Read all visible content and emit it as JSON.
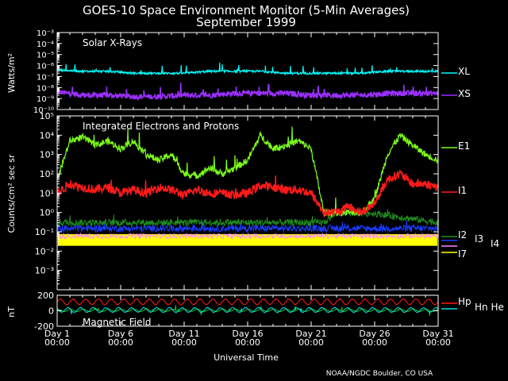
{
  "title": "GOES-10 Space Environment Monitor (5-Min Averages)",
  "subtitle": "September 1999",
  "xlabel": "Universal Time",
  "credit": "NOAA/NGDC Boulder, CO USA",
  "colors": {
    "background": "#000000",
    "axes": "#ffffff",
    "XL": "#00ffff",
    "XS": "#9a30ff",
    "E1": "#7cff1a",
    "I1": "#ff1a1a",
    "I2": "#1e8f1e",
    "I3": "#1a3cff",
    "I4": "#ff88ff",
    "I7": "#ffff00",
    "Hp": "#ff1a1a",
    "Hn": "#00e0e0",
    "He": "#1fbf1f"
  },
  "chart_data": [
    {
      "type": "line",
      "panel": "solar-xrays",
      "annotation": "Solar X-Rays",
      "ylabel": "Watts/m²",
      "yscale": "log",
      "ylim": [
        1e-10,
        0.001
      ],
      "yticks": [
        "10⁻³",
        "10⁻⁴",
        "10⁻⁵",
        "10⁻⁶",
        "10⁻⁷",
        "10⁻⁸",
        "10⁻⁹",
        "10⁻¹⁰"
      ],
      "x_unit": "day of September 1999",
      "xlim": [
        1,
        31
      ],
      "series": [
        {
          "name": "XL",
          "baseline": 2e-07,
          "x": [
            1,
            3,
            5,
            7,
            9,
            11,
            13,
            15,
            17,
            19,
            21,
            23,
            25,
            27,
            29,
            31
          ],
          "values": [
            4e-07,
            3e-07,
            3e-07,
            2e-07,
            2e-07,
            2e-07,
            3e-07,
            3e-07,
            3e-07,
            2e-07,
            2e-07,
            2e-07,
            2e-07,
            3e-07,
            3e-07,
            3e-07
          ]
        },
        {
          "name": "XS",
          "baseline": 1.5e-09,
          "x": [
            1,
            3,
            5,
            7,
            9,
            11,
            13,
            15,
            17,
            19,
            21,
            23,
            25,
            27,
            29,
            31
          ],
          "values": [
            4e-09,
            2e-09,
            2e-09,
            1.5e-09,
            1.5e-09,
            2e-09,
            2e-09,
            3e-09,
            3e-09,
            3e-09,
            2e-09,
            2e-09,
            2e-09,
            3e-09,
            3e-09,
            3e-09
          ]
        }
      ]
    },
    {
      "type": "line",
      "panel": "particles",
      "annotation": "Integrated Electrons and Protons",
      "ylabel": "Counts/cm² sec sr",
      "yscale": "log",
      "ylim": [
        0.0001,
        100000
      ],
      "yticks": [
        "10⁵",
        "10⁴",
        "10³",
        "10²",
        "10¹",
        "10⁰",
        "10⁻¹",
        "10⁻²",
        "10⁻³"
      ],
      "x_unit": "day of September 1999",
      "xlim": [
        1,
        31
      ],
      "series": [
        {
          "name": "E1",
          "x": [
            1,
            2,
            3,
            4,
            5,
            6,
            7,
            8,
            9,
            10,
            11,
            12,
            13,
            14,
            15,
            16,
            17,
            18,
            19,
            20,
            21,
            22,
            23,
            24,
            25,
            26,
            27,
            28,
            29,
            30,
            31
          ],
          "values": [
            50,
            5000,
            8000,
            3000,
            5000,
            2000,
            5000,
            1000,
            500,
            1000,
            100,
            80,
            200,
            100,
            200,
            500,
            10000,
            2000,
            3000,
            5000,
            2000,
            1,
            1,
            1,
            1,
            5,
            1000,
            10000,
            3000,
            1000,
            500
          ]
        },
        {
          "name": "I1",
          "x": [
            1,
            2,
            3,
            4,
            5,
            6,
            7,
            8,
            9,
            10,
            11,
            12,
            13,
            14,
            15,
            16,
            17,
            18,
            19,
            20,
            21,
            22,
            23,
            24,
            25,
            26,
            27,
            28,
            29,
            30,
            31
          ],
          "values": [
            10,
            30,
            20,
            15,
            20,
            10,
            15,
            10,
            20,
            15,
            8,
            15,
            10,
            10,
            8,
            10,
            25,
            20,
            15,
            15,
            10,
            1,
            1,
            2,
            1,
            3,
            50,
            100,
            30,
            30,
            20
          ]
        },
        {
          "name": "I2",
          "values": [
            0.3
          ]
        },
        {
          "name": "I3",
          "values": [
            0.15
          ]
        },
        {
          "name": "I4",
          "values": [
            0.06
          ]
        },
        {
          "name": "I7",
          "values": [
            0.025
          ]
        }
      ]
    },
    {
      "type": "line",
      "panel": "magnetic-field",
      "annotation": "Magnetic Field",
      "ylabel": "nT",
      "ylim": [
        -200,
        200
      ],
      "yticks": [
        "200",
        "0",
        "-200"
      ],
      "x_unit": "day of September 1999",
      "xlim": [
        1,
        31
      ],
      "series": [
        {
          "name": "Hp",
          "daily_range": [
            80,
            150
          ]
        },
        {
          "name": "Hn",
          "daily_range": [
            -20,
            40
          ]
        },
        {
          "name": "He",
          "daily_range": [
            -10,
            20
          ]
        }
      ]
    }
  ],
  "xticks": [
    {
      "day": 1,
      "label": "Day 1",
      "time": "00:00"
    },
    {
      "day": 6,
      "label": "Day 6",
      "time": "00:00"
    },
    {
      "day": 11,
      "label": "Day 11",
      "time": "00:00"
    },
    {
      "day": 16,
      "label": "Day 16",
      "time": "00:00"
    },
    {
      "day": 21,
      "label": "Day 21",
      "time": "00:00"
    },
    {
      "day": 26,
      "label": "Day 26",
      "time": "00:00"
    },
    {
      "day": 31,
      "label": "Day 31",
      "time": "00:00"
    }
  ],
  "right_labels": {
    "xrays": [
      "XL",
      "XS"
    ],
    "particles": [
      "E1",
      "I1",
      "I2",
      "I3",
      "I4",
      "I7"
    ],
    "mag": [
      "Hp",
      "Hn He"
    ]
  }
}
